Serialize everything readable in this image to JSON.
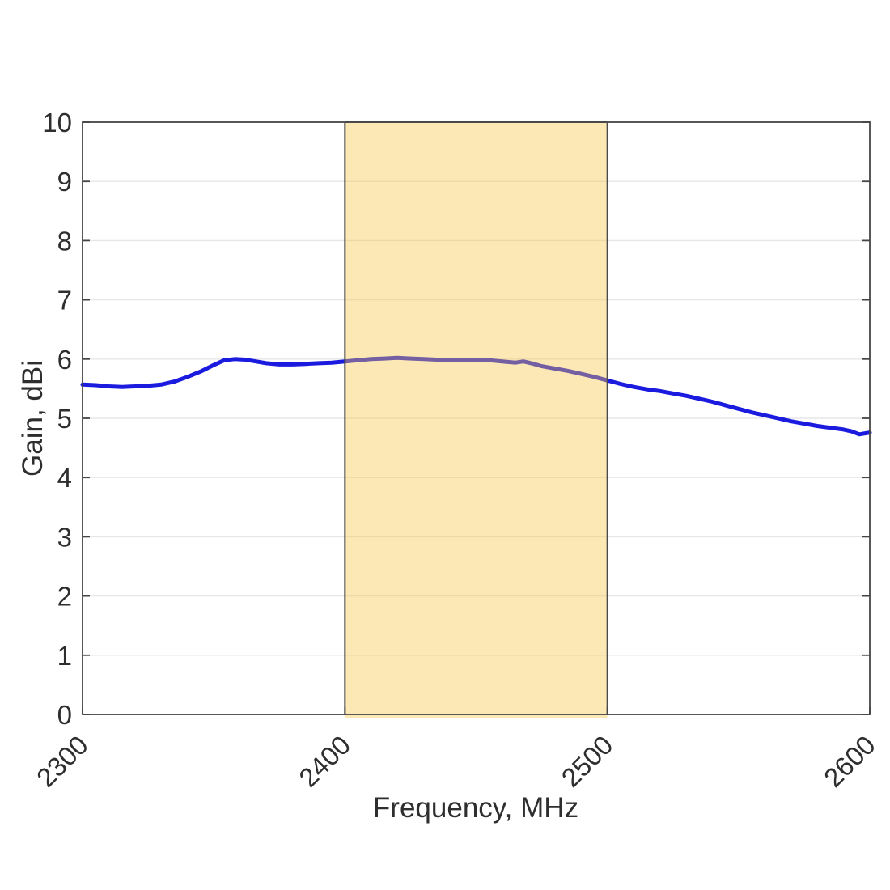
{
  "figure": {
    "background_color": "#ffffff"
  },
  "chart_data": {
    "type": "line",
    "title": "",
    "xlabel": "Frequency, MHz",
    "ylabel": "Gain, dBi",
    "xlim": [
      2300,
      2600
    ],
    "ylim": [
      0,
      10
    ],
    "xticks": [
      2300,
      2400,
      2500,
      2600
    ],
    "yticks": [
      0,
      1,
      2,
      3,
      4,
      5,
      6,
      7,
      8,
      9,
      10
    ],
    "grid": "horizontal",
    "x_tick_rotation_deg": -45,
    "legend": "none",
    "series": [
      {
        "name": "gain-curve",
        "color": "#1b1be0",
        "line_width": 5,
        "x": [
          2300,
          2305,
          2310,
          2315,
          2320,
          2325,
          2330,
          2335,
          2340,
          2345,
          2350,
          2354,
          2358,
          2362,
          2366,
          2370,
          2375,
          2380,
          2385,
          2390,
          2395,
          2400,
          2405,
          2410,
          2415,
          2420,
          2425,
          2430,
          2435,
          2440,
          2445,
          2450,
          2455,
          2460,
          2465,
          2468,
          2471,
          2475,
          2480,
          2485,
          2490,
          2495,
          2500,
          2505,
          2510,
          2515,
          2520,
          2525,
          2530,
          2535,
          2540,
          2545,
          2550,
          2555,
          2560,
          2565,
          2570,
          2575,
          2580,
          2585,
          2590,
          2593,
          2596,
          2600
        ],
        "y": [
          5.57,
          5.56,
          5.54,
          5.53,
          5.54,
          5.55,
          5.57,
          5.62,
          5.7,
          5.79,
          5.9,
          5.98,
          6.0,
          5.99,
          5.96,
          5.93,
          5.91,
          5.91,
          5.92,
          5.93,
          5.94,
          5.96,
          5.98,
          6.0,
          6.01,
          6.02,
          6.01,
          6.0,
          5.99,
          5.98,
          5.98,
          5.99,
          5.98,
          5.96,
          5.94,
          5.96,
          5.93,
          5.88,
          5.84,
          5.8,
          5.75,
          5.7,
          5.64,
          5.58,
          5.53,
          5.49,
          5.46,
          5.42,
          5.38,
          5.33,
          5.28,
          5.22,
          5.16,
          5.1,
          5.05,
          5.0,
          4.95,
          4.91,
          4.87,
          4.84,
          4.81,
          4.78,
          4.73,
          4.76
        ]
      }
    ],
    "highlight_band": {
      "x_start": 2400,
      "x_end": 2500,
      "fill": "rgba(247, 198, 69, 0.40)",
      "edge_color": "#4a4a4a",
      "edge_width": 2
    },
    "style": {
      "grid_color": "#e7e7e7",
      "grid_width": 1.4,
      "axis_color": "#454545",
      "axis_width": 1.8,
      "tick_length": 9,
      "tick_label_color": "#2e2e2e",
      "tick_font_size": 33,
      "label_font_size": 35,
      "label_color": "#2e2e2e"
    }
  }
}
